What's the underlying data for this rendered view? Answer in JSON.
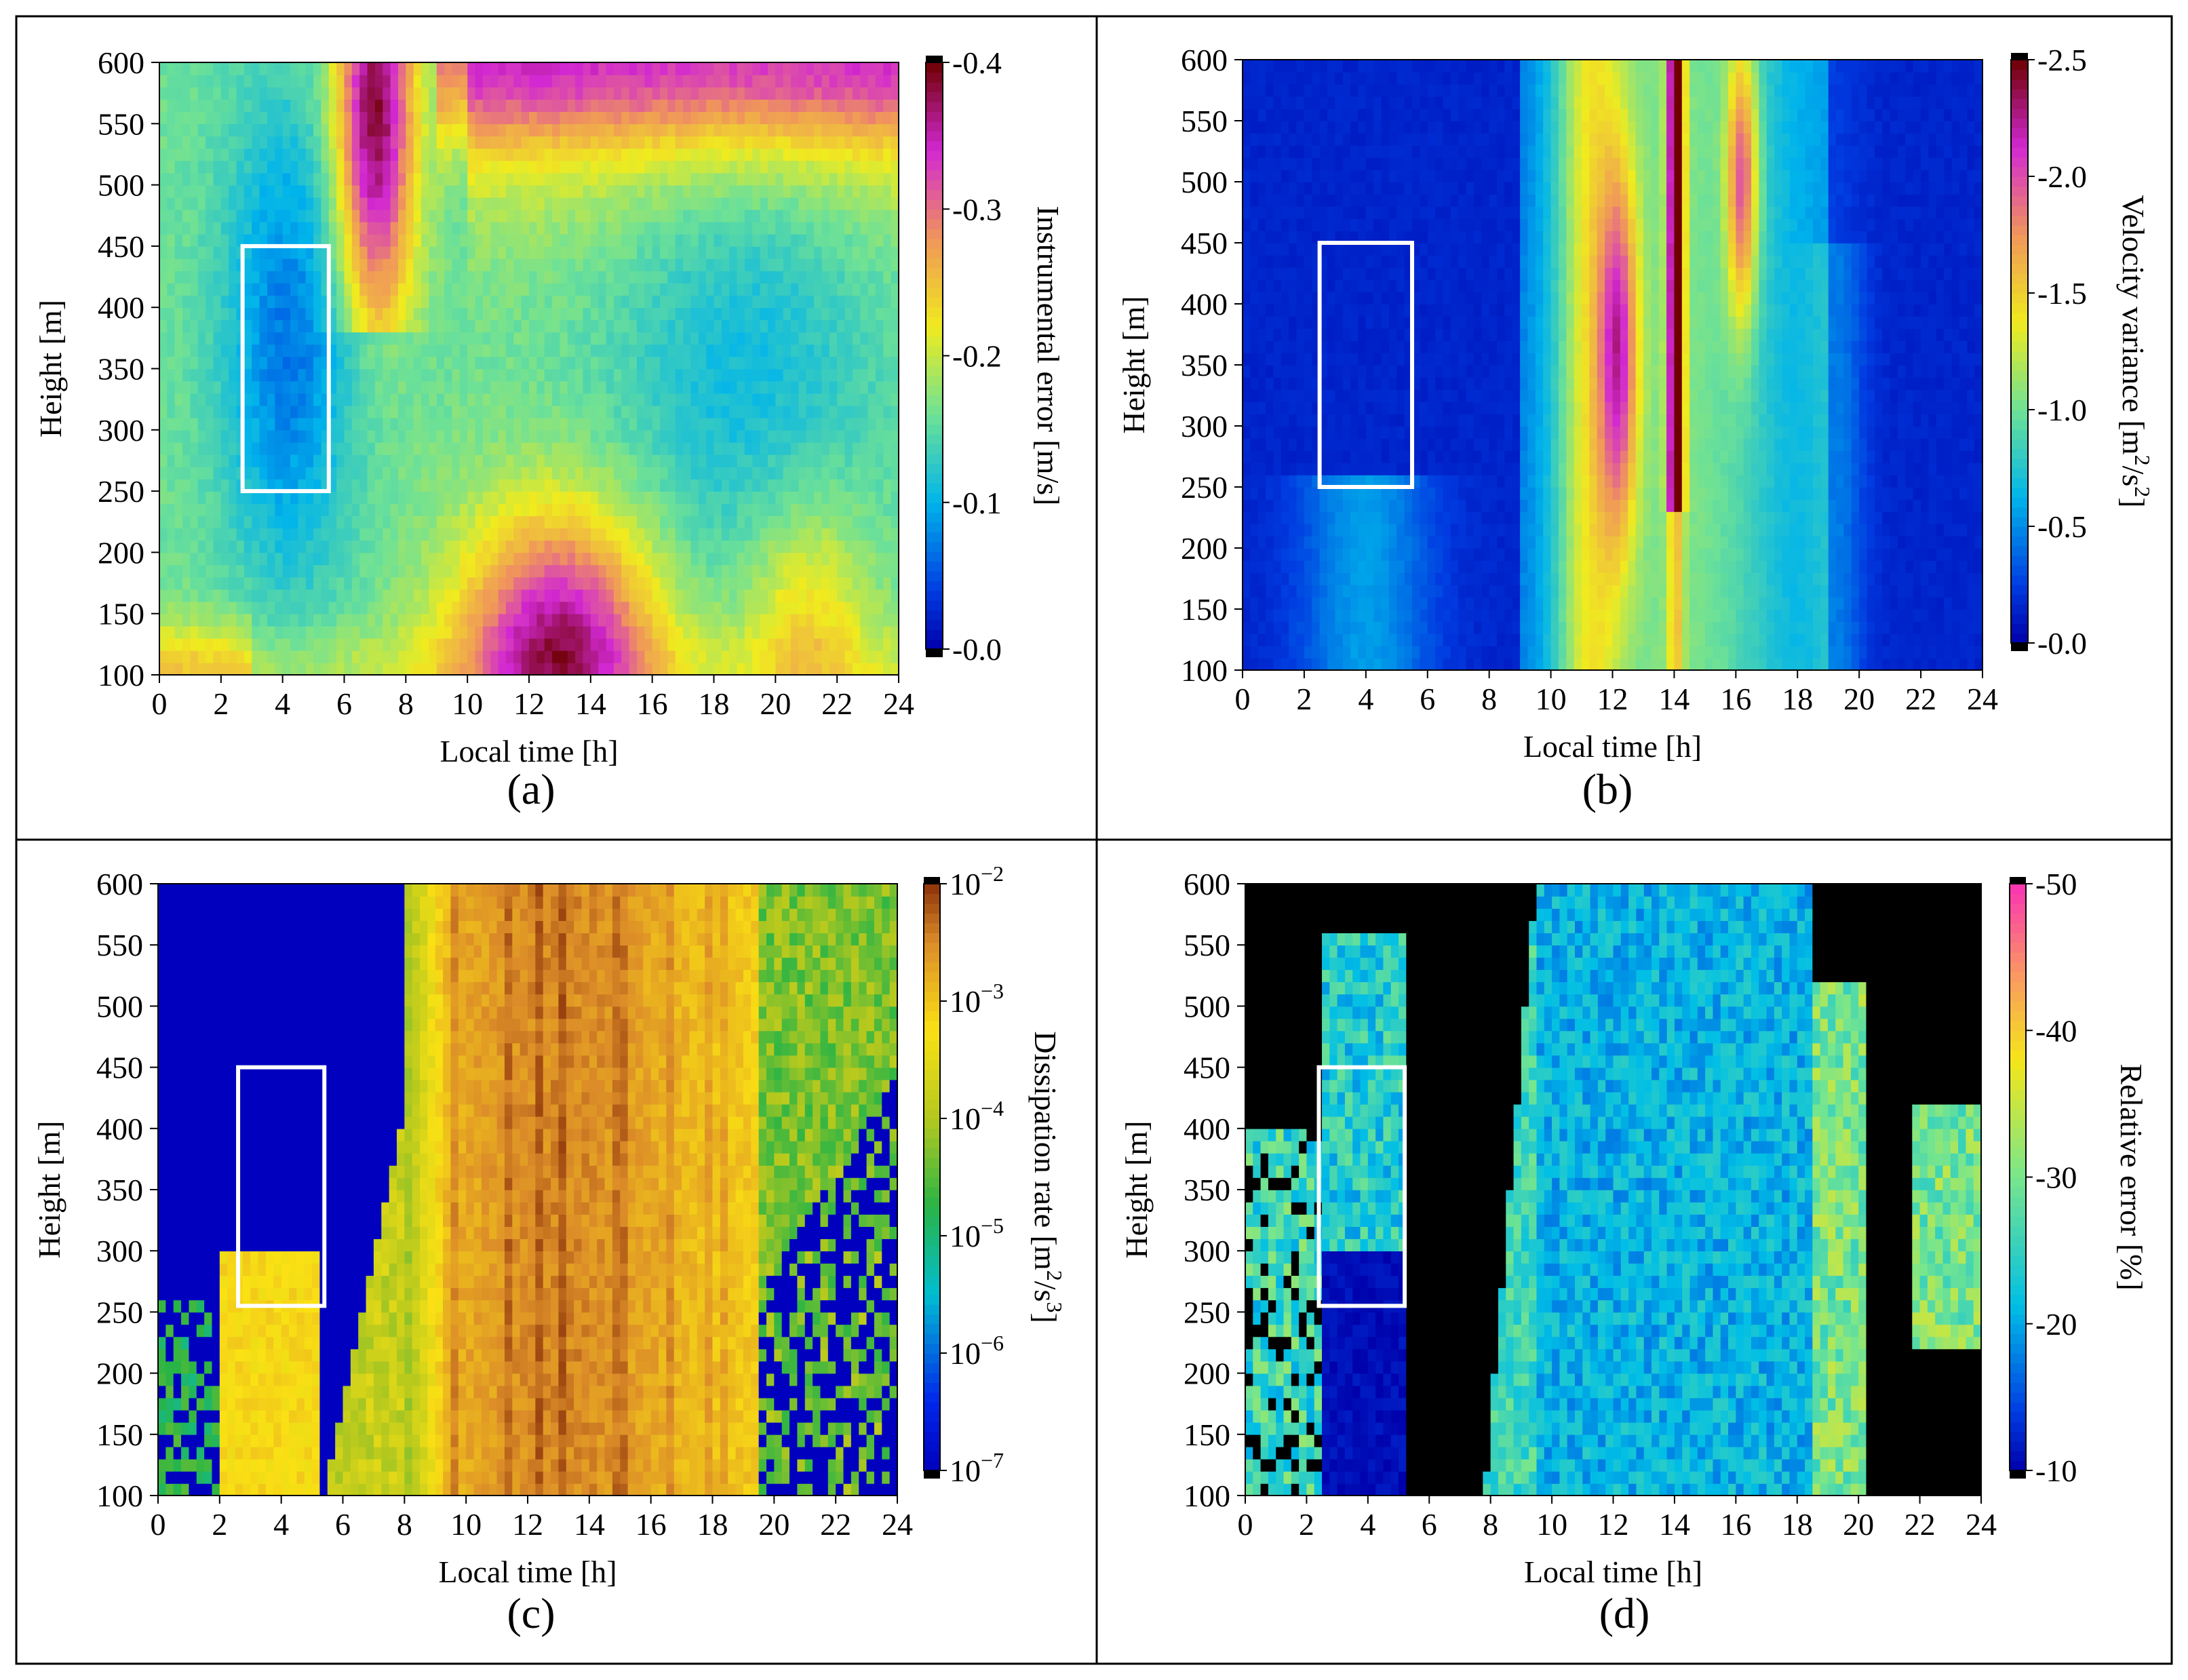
{
  "chart_data": [
    {
      "type": "heatmap",
      "panel_label": "(a)",
      "xlabel": "Local time [h]",
      "ylabel": "Height [m]",
      "xlim": [
        0,
        24
      ],
      "ylim": [
        100,
        600
      ],
      "xticks": [
        "0",
        "2",
        "4",
        "6",
        "8",
        "10",
        "12",
        "14",
        "16",
        "18",
        "20",
        "22",
        "24"
      ],
      "yticks": [
        "100",
        "150",
        "200",
        "250",
        "300",
        "350",
        "400",
        "450",
        "500",
        "550",
        "600"
      ],
      "colorbar": {
        "label": "Instrumental error [m/s]",
        "colormap": "jet-magenta",
        "range": [
          0.0,
          0.4
        ],
        "ticks": [
          "-0.0",
          "-0.1",
          "-0.2",
          "-0.3",
          "-0.4"
        ],
        "label_tokens": [
          {
            "text": "Instrumental error [m/s]"
          }
        ]
      },
      "highlight_box": {
        "x": [
          2.7,
          5.5
        ],
        "y": [
          250,
          450
        ]
      },
      "field_model": "instrumental_error"
    },
    {
      "type": "heatmap",
      "panel_label": "(b)",
      "xlabel": "Local time [h]",
      "ylabel": "Height [m]",
      "xlim": [
        0,
        24
      ],
      "ylim": [
        100,
        600
      ],
      "xticks": [
        "0",
        "2",
        "4",
        "6",
        "8",
        "10",
        "12",
        "14",
        "16",
        "18",
        "20",
        "22",
        "24"
      ],
      "yticks": [
        "100",
        "150",
        "200",
        "250",
        "300",
        "350",
        "400",
        "450",
        "500",
        "550",
        "600"
      ],
      "colorbar": {
        "label": "Velocity variance [m²/s²]",
        "colormap": "jet-magenta",
        "range": [
          0.0,
          2.5
        ],
        "ticks": [
          "-0.0",
          "-0.5",
          "-1.0",
          "-1.5",
          "-2.0",
          "-2.5"
        ],
        "label_tokens": [
          {
            "text": "Velocity variance [m"
          },
          {
            "text": "2",
            "sup": true
          },
          {
            "text": "/s"
          },
          {
            "text": "2",
            "sup": true
          },
          {
            "text": "]"
          }
        ]
      },
      "highlight_box": {
        "x": [
          2.5,
          5.5
        ],
        "y": [
          250,
          450
        ]
      },
      "field_model": "velocity_variance"
    },
    {
      "type": "heatmap",
      "panel_label": "(c)",
      "xlabel": "Local time [h]",
      "ylabel": "Height [m]",
      "xlim": [
        0,
        24
      ],
      "ylim": [
        100,
        600
      ],
      "xticks": [
        "0",
        "2",
        "4",
        "6",
        "8",
        "10",
        "12",
        "14",
        "16",
        "18",
        "20",
        "22",
        "24"
      ],
      "yticks": [
        "100",
        "150",
        "200",
        "250",
        "300",
        "350",
        "400",
        "450",
        "500",
        "550",
        "600"
      ],
      "colorbar": {
        "label": "Dissipation rate [m²/s³]",
        "colormap": "jet-brown",
        "scale": "log",
        "range": [
          -7,
          -2
        ],
        "ticks": [
          {
            "base": "10",
            "exp": "−7"
          },
          {
            "base": "10",
            "exp": "−6"
          },
          {
            "base": "10",
            "exp": "−5"
          },
          {
            "base": "10",
            "exp": "−4"
          },
          {
            "base": "10",
            "exp": "−3"
          },
          {
            "base": "10",
            "exp": "−2"
          }
        ],
        "label_tokens": [
          {
            "text": "Dissipation rate [m"
          },
          {
            "text": "2",
            "sup": true
          },
          {
            "text": "/s"
          },
          {
            "text": "3",
            "sup": true
          },
          {
            "text": "]"
          }
        ]
      },
      "highlight_box": {
        "x": [
          2.6,
          5.4
        ],
        "y": [
          255,
          450
        ]
      },
      "field_model": "dissipation_rate"
    },
    {
      "type": "heatmap",
      "panel_label": "(d)",
      "xlabel": "Local time [h]",
      "ylabel": "Height [m]",
      "xlim": [
        0,
        24
      ],
      "ylim": [
        100,
        600
      ],
      "xticks": [
        "0",
        "2",
        "4",
        "6",
        "8",
        "10",
        "12",
        "14",
        "16",
        "18",
        "20",
        "22",
        "24"
      ],
      "yticks": [
        "100",
        "150",
        "200",
        "250",
        "300",
        "350",
        "400",
        "450",
        "500",
        "550",
        "600"
      ],
      "colorbar": {
        "label": "Relative error [%]",
        "colormap": "jet-pink",
        "range": [
          10,
          50
        ],
        "ticks": [
          "-10",
          "-20",
          "-30",
          "-40",
          "-50"
        ],
        "label_tokens": [
          {
            "text": "Relative error [%]"
          }
        ]
      },
      "highlight_box": {
        "x": [
          2.4,
          5.2
        ],
        "y": [
          255,
          450
        ]
      },
      "field_model": "relative_error"
    }
  ]
}
